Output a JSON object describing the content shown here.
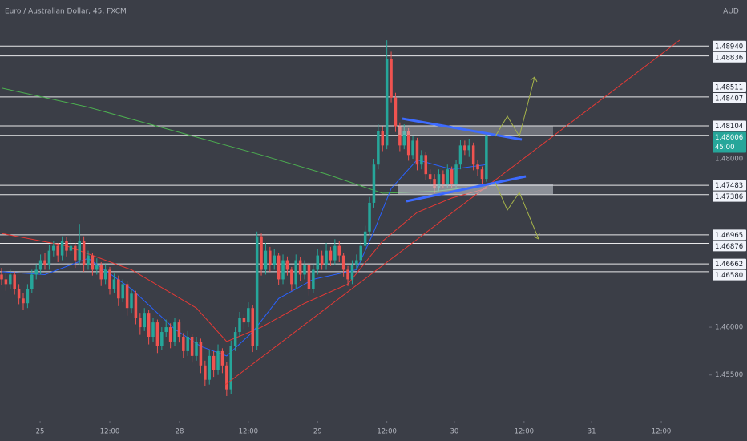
{
  "chart_data": {
    "type": "candlestick",
    "title": "Euro / Australian Dollar, 45, FXCM",
    "currency": "AUD",
    "up_color": "#26a69a",
    "down_color": "#ef5350",
    "xlim": [
      -0.37,
      163.5
    ],
    "ylim": [
      1.4502,
      1.4942
    ],
    "xticks": [
      {
        "value": 8.9,
        "label": "25"
      },
      {
        "value": 25,
        "label": "12:00"
      },
      {
        "value": 41.1,
        "label": "28"
      },
      {
        "value": 57,
        "label": "12:00"
      },
      {
        "value": 73,
        "label": "29"
      },
      {
        "value": 89,
        "label": "12:00"
      },
      {
        "value": 104.6,
        "label": "30"
      },
      {
        "value": 120.7,
        "label": "12:00"
      },
      {
        "value": 136.3,
        "label": "31"
      },
      {
        "value": 152.4,
        "label": "12:00"
      }
    ],
    "yticks": [
      {
        "value": 1.48,
        "label": "1.48000"
      },
      {
        "value": 1.46,
        "label": "1.46000"
      },
      {
        "value": 1.455,
        "label": "1.45500"
      }
    ],
    "levels": [
      {
        "value": 1.4894,
        "label": "1.48940"
      },
      1.48836,
      1.48511,
      1.48407,
      1.48104,
      1.47483,
      1.47386,
      1.46965,
      1.46876,
      1.46662,
      {
        "value": 1.4658,
        "label": "1.46580"
      }
    ],
    "current": {
      "value": 1.48006,
      "countdown": "45:00",
      "color": "#26a69a"
    },
    "candles": [
      [
        1.4655,
        1.4662,
        1.4644,
        1.465
      ],
      [
        1.465,
        1.4656,
        1.4638,
        1.4645
      ],
      [
        1.4645,
        1.466,
        1.464,
        1.4655
      ],
      [
        1.4655,
        1.4658,
        1.4634,
        1.464
      ],
      [
        1.464,
        1.4645,
        1.4624,
        1.463
      ],
      [
        1.463,
        1.4636,
        1.4618,
        1.4625
      ],
      [
        1.4625,
        1.4645,
        1.462,
        1.464
      ],
      [
        1.464,
        1.466,
        1.4636,
        1.4655
      ],
      [
        1.4655,
        1.4666,
        1.465,
        1.466
      ],
      [
        1.466,
        1.4676,
        1.4655,
        1.467
      ],
      [
        1.467,
        1.4678,
        1.466,
        1.4665
      ],
      [
        1.4665,
        1.4686,
        1.466,
        1.468
      ],
      [
        1.468,
        1.469,
        1.4674,
        1.4685
      ],
      [
        1.4685,
        1.4688,
        1.4668,
        1.4675
      ],
      [
        1.4675,
        1.4695,
        1.467,
        1.469
      ],
      [
        1.469,
        1.4694,
        1.4674,
        1.468
      ],
      [
        1.468,
        1.4692,
        1.4676,
        1.4685
      ],
      [
        1.4685,
        1.4688,
        1.4662,
        1.467
      ],
      [
        1.467,
        1.4708,
        1.4666,
        1.469
      ],
      [
        1.469,
        1.4695,
        1.4658,
        1.4665
      ],
      [
        1.4665,
        1.468,
        1.466,
        1.4675
      ],
      [
        1.4675,
        1.4678,
        1.4654,
        1.466
      ],
      [
        1.466,
        1.4672,
        1.4655,
        1.4665
      ],
      [
        1.4665,
        1.4668,
        1.4643,
        1.465
      ],
      [
        1.465,
        1.4666,
        1.4645,
        1.466
      ],
      [
        1.466,
        1.4663,
        1.4634,
        1.464
      ],
      [
        1.464,
        1.4656,
        1.4636,
        1.465
      ],
      [
        1.465,
        1.4654,
        1.4622,
        1.463
      ],
      [
        1.463,
        1.465,
        1.4626,
        1.4645
      ],
      [
        1.4645,
        1.4648,
        1.4612,
        1.462
      ],
      [
        1.462,
        1.464,
        1.4615,
        1.4635
      ],
      [
        1.4635,
        1.4638,
        1.4603,
        1.461
      ],
      [
        1.461,
        1.4615,
        1.4592,
        1.46
      ],
      [
        1.46,
        1.462,
        1.4596,
        1.4615
      ],
      [
        1.4615,
        1.4618,
        1.4582,
        1.459
      ],
      [
        1.459,
        1.461,
        1.4585,
        1.4605
      ],
      [
        1.4605,
        1.4608,
        1.4573,
        1.458
      ],
      [
        1.458,
        1.46,
        1.4576,
        1.4595
      ],
      [
        1.4595,
        1.4608,
        1.459,
        1.46
      ],
      [
        1.46,
        1.4604,
        1.4578,
        1.4585
      ],
      [
        1.4585,
        1.461,
        1.458,
        1.4605
      ],
      [
        1.4605,
        1.4608,
        1.4584,
        1.459
      ],
      [
        1.459,
        1.4594,
        1.4568,
        1.4575
      ],
      [
        1.4575,
        1.4596,
        1.457,
        1.459
      ],
      [
        1.459,
        1.4593,
        1.4563,
        1.457
      ],
      [
        1.457,
        1.459,
        1.4565,
        1.4585
      ],
      [
        1.4585,
        1.4588,
        1.4552,
        1.456
      ],
      [
        1.456,
        1.4565,
        1.4538,
        1.4545
      ],
      [
        1.4545,
        1.4576,
        1.454,
        1.457
      ],
      [
        1.457,
        1.4575,
        1.4548,
        1.4555
      ],
      [
        1.4555,
        1.4582,
        1.455,
        1.4575
      ],
      [
        1.4575,
        1.4578,
        1.4552,
        1.456
      ],
      [
        1.456,
        1.4564,
        1.4528,
        1.4535
      ],
      [
        1.4535,
        1.4586,
        1.453,
        1.458
      ],
      [
        1.458,
        1.46,
        1.4575,
        1.4595
      ],
      [
        1.4595,
        1.4616,
        1.459,
        1.461
      ],
      [
        1.461,
        1.4614,
        1.4598,
        1.4605
      ],
      [
        1.4605,
        1.4626,
        1.46,
        1.462
      ],
      [
        1.462,
        1.4623,
        1.4574,
        1.458
      ],
      [
        1.458,
        1.47,
        1.4576,
        1.4695
      ],
      [
        1.4695,
        1.4698,
        1.4654,
        1.466
      ],
      [
        1.466,
        1.4688,
        1.4655,
        1.468
      ],
      [
        1.468,
        1.4684,
        1.4658,
        1.4665
      ],
      [
        1.4665,
        1.4682,
        1.466,
        1.4675
      ],
      [
        1.4675,
        1.4678,
        1.4644,
        1.465
      ],
      [
        1.465,
        1.4676,
        1.4645,
        1.467
      ],
      [
        1.467,
        1.4674,
        1.4654,
        1.466
      ],
      [
        1.466,
        1.4663,
        1.4638,
        1.4645
      ],
      [
        1.4645,
        1.4676,
        1.464,
        1.467
      ],
      [
        1.467,
        1.4673,
        1.4648,
        1.4655
      ],
      [
        1.4655,
        1.467,
        1.465,
        1.4665
      ],
      [
        1.4665,
        1.4668,
        1.4633,
        1.464
      ],
      [
        1.464,
        1.4666,
        1.4636,
        1.466
      ],
      [
        1.466,
        1.4682,
        1.4655,
        1.4675
      ],
      [
        1.4675,
        1.468,
        1.466,
        1.4665
      ],
      [
        1.4665,
        1.4688,
        1.466,
        1.468
      ],
      [
        1.468,
        1.4684,
        1.4664,
        1.467
      ],
      [
        1.467,
        1.4692,
        1.4665,
        1.4685
      ],
      [
        1.4685,
        1.469,
        1.4668,
        1.4675
      ],
      [
        1.4675,
        1.4678,
        1.4653,
        1.466
      ],
      [
        1.466,
        1.4664,
        1.4643,
        1.465
      ],
      [
        1.465,
        1.467,
        1.4645,
        1.4665
      ],
      [
        1.4665,
        1.4676,
        1.466,
        1.467
      ],
      [
        1.467,
        1.469,
        1.4665,
        1.4685
      ],
      [
        1.4685,
        1.4706,
        1.468,
        1.47
      ],
      [
        1.47,
        1.4736,
        1.4696,
        1.473
      ],
      [
        1.473,
        1.4776,
        1.4725,
        1.477
      ],
      [
        1.477,
        1.4812,
        1.4765,
        1.4805
      ],
      [
        1.4805,
        1.481,
        1.4784,
        1.479
      ],
      [
        1.479,
        1.49,
        1.4786,
        1.488
      ],
      [
        1.488,
        1.4888,
        1.4835,
        1.484
      ],
      [
        1.484,
        1.4845,
        1.4804,
        1.481
      ],
      [
        1.481,
        1.4814,
        1.4784,
        1.479
      ],
      [
        1.479,
        1.4812,
        1.4786,
        1.4805
      ],
      [
        1.4805,
        1.4808,
        1.4774,
        1.478
      ],
      [
        1.478,
        1.48,
        1.4776,
        1.4795
      ],
      [
        1.4795,
        1.4798,
        1.4764,
        1.477
      ],
      [
        1.477,
        1.4785,
        1.4765,
        1.478
      ],
      [
        1.478,
        1.4783,
        1.4754,
        1.476
      ],
      [
        1.476,
        1.4765,
        1.475,
        1.4755
      ],
      [
        1.4755,
        1.476,
        1.474,
        1.4745
      ],
      [
        1.4745,
        1.4765,
        1.4742,
        1.476
      ],
      [
        1.476,
        1.4764,
        1.4745,
        1.475
      ],
      [
        1.475,
        1.477,
        1.4746,
        1.4765
      ],
      [
        1.4765,
        1.4768,
        1.4745,
        1.475
      ],
      [
        1.475,
        1.4775,
        1.4746,
        1.477
      ],
      [
        1.477,
        1.4796,
        1.4765,
        1.479
      ],
      [
        1.479,
        1.4795,
        1.478,
        1.4785
      ],
      [
        1.4785,
        1.4797,
        1.4778,
        1.479
      ],
      [
        1.479,
        1.4793,
        1.4764,
        1.477
      ],
      [
        1.477,
        1.4775,
        1.4758,
        1.4765
      ],
      [
        1.4765,
        1.4768,
        1.4748,
        1.4755
      ],
      [
        1.4755,
        1.4801,
        1.4752,
        1.48006
      ]
    ],
    "overlays": [
      {
        "color": "#4caf50",
        "x": [
          0,
          20,
          40,
          60,
          75,
          88,
          100,
          112
        ],
        "values": [
          1.485,
          1.483,
          1.4805,
          1.478,
          1.476,
          1.474,
          1.4742,
          1.4748
        ]
      },
      {
        "color": "#e53935",
        "x": [
          0,
          15,
          30,
          45,
          52,
          60,
          70,
          80,
          88,
          96,
          104,
          112
        ],
        "values": [
          1.4698,
          1.4685,
          1.466,
          1.462,
          1.4585,
          1.46,
          1.4625,
          1.4645,
          1.469,
          1.472,
          1.4735,
          1.4745
        ]
      },
      {
        "color": "#2962ff",
        "x": [
          0,
          10,
          20,
          30,
          40,
          46,
          52,
          58,
          64,
          72,
          82,
          86,
          90,
          96,
          104,
          112
        ],
        "values": [
          1.4658,
          1.4655,
          1.4672,
          1.464,
          1.4598,
          1.458,
          1.457,
          1.4595,
          1.463,
          1.465,
          1.466,
          1.47,
          1.4745,
          1.4775,
          1.4765,
          1.477
        ]
      }
    ]
  }
}
